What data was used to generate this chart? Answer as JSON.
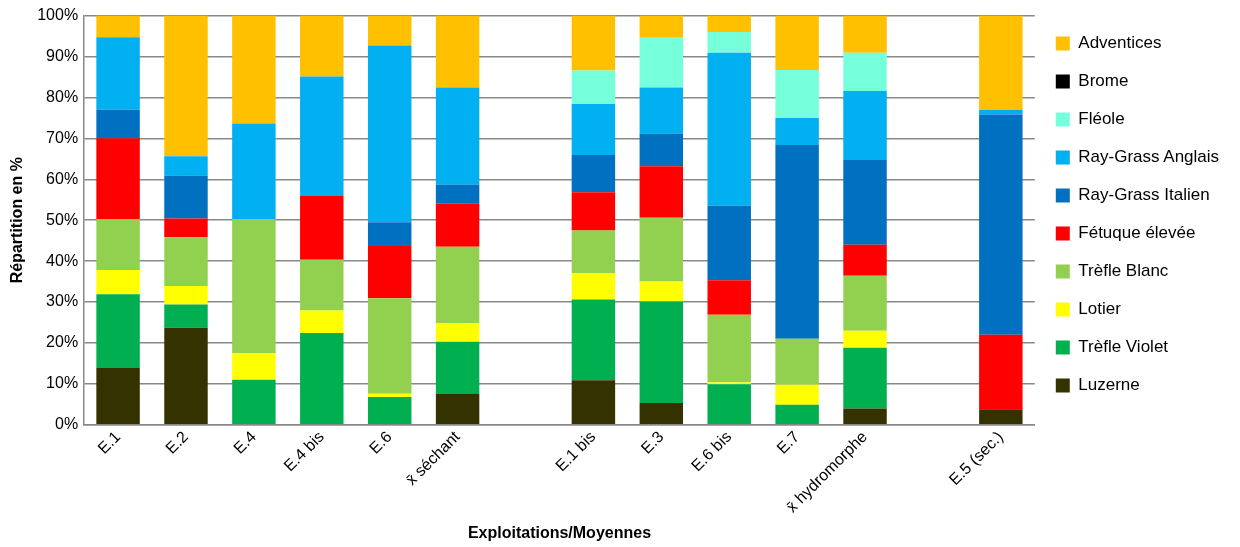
{
  "chart_data": {
    "type": "bar",
    "stacked": true,
    "xlabel": "Exploitations/Moyennes",
    "ylabel": "Répartition en %",
    "categories": [
      "E.1",
      "E.2",
      "E.4",
      "E.4 bis",
      "E.6",
      "x̄ séchant",
      null,
      "E.1 bis",
      "E.3",
      "E.6 bis",
      "E.7",
      "x̄ hydromorphe",
      null,
      "E.5 (sec.)"
    ],
    "series": [
      {
        "name": "Luzerne",
        "color": "#343300",
        "values": [
          14.0,
          23.7,
          0,
          0,
          0,
          7.5,
          null,
          10.9,
          5.3,
          0,
          0,
          4.0,
          null,
          3.8
        ]
      },
      {
        "name": "Trèfle Violet",
        "color": "#00b050",
        "values": [
          17.9,
          5.7,
          11.0,
          22.4,
          6.8,
          12.8,
          null,
          19.7,
          24.8,
          9.9,
          4.9,
          14.8,
          null,
          0
        ]
      },
      {
        "name": "Lotier",
        "color": "#ffff00",
        "values": [
          5.9,
          4.5,
          6.5,
          5.5,
          0.8,
          4.6,
          null,
          6.5,
          4.9,
          0.5,
          4.9,
          4.2,
          null,
          0
        ]
      },
      {
        "name": "Trèfle Blanc",
        "color": "#92d050",
        "values": [
          12.5,
          11.9,
          32.8,
          12.4,
          23.3,
          18.6,
          null,
          10.4,
          15.6,
          16.5,
          11.2,
          13.4,
          null,
          0
        ]
      },
      {
        "name": "Fétuque élevée",
        "color": "#ff0000",
        "values": [
          19.7,
          4.6,
          0,
          15.6,
          12.8,
          10.5,
          null,
          9.3,
          12.6,
          8.4,
          0,
          7.6,
          null,
          18.2
        ]
      },
      {
        "name": "Ray-Grass Italien",
        "color": "#0070c0",
        "values": [
          7.0,
          10.5,
          0,
          0,
          5.8,
          4.7,
          null,
          9.1,
          8.0,
          18.2,
          47.4,
          20.7,
          null,
          53.8
        ]
      },
      {
        "name": "Ray-Grass Anglais",
        "color": "#00b0f0",
        "values": [
          17.7,
          4.7,
          23.3,
          29.2,
          43.2,
          23.7,
          null,
          12.5,
          11.2,
          37.4,
          6.6,
          16.9,
          null,
          1.2
        ]
      },
      {
        "name": "Fléole",
        "color": "#75ffdb",
        "values": [
          0,
          0,
          0,
          0,
          0,
          0,
          null,
          8.2,
          12.2,
          5.1,
          11.7,
          9.3,
          null,
          0
        ]
      },
      {
        "name": "Brome",
        "color": "#000000",
        "values": [
          0,
          0,
          0,
          0,
          0,
          0,
          null,
          0,
          0,
          0,
          0,
          0,
          null,
          0
        ]
      },
      {
        "name": "Adventices",
        "color": "#ffc000",
        "values": [
          5.3,
          34.4,
          26.4,
          14.9,
          7.3,
          17.6,
          null,
          13.4,
          5.4,
          4.0,
          13.3,
          9.1,
          null,
          23.0
        ]
      }
    ],
    "ylim": [
      0,
      100
    ],
    "yticks": [
      {
        "value": 0,
        "label": "0%"
      },
      {
        "value": 10,
        "label": "10%"
      },
      {
        "value": 20,
        "label": "20%"
      },
      {
        "value": 30,
        "label": "30%"
      },
      {
        "value": 40,
        "label": "40%"
      },
      {
        "value": 50,
        "label": "50%"
      },
      {
        "value": 60,
        "label": "60%"
      },
      {
        "value": 70,
        "label": "70%"
      },
      {
        "value": 80,
        "label": "80%"
      },
      {
        "value": 90,
        "label": "90%"
      },
      {
        "value": 100,
        "label": "100%"
      }
    ],
    "grid": "y",
    "legend": "right"
  }
}
